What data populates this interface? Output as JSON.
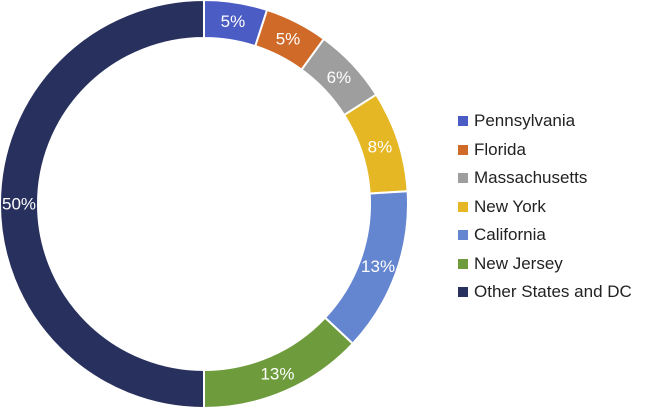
{
  "chart_data": {
    "type": "pie",
    "donut": true,
    "title": "",
    "legend_position": "right",
    "series": [
      {
        "name": "Pennsylvania",
        "value": 5,
        "label": "5%",
        "color": "#4b5cc4"
      },
      {
        "name": "Florida",
        "value": 5,
        "label": "5%",
        "color": "#cf6a28"
      },
      {
        "name": "Massachusetts",
        "value": 6,
        "label": "6%",
        "color": "#9e9e9e"
      },
      {
        "name": "New York",
        "value": 8,
        "label": "8%",
        "color": "#e5b724"
      },
      {
        "name": "California",
        "value": 13,
        "label": "13%",
        "color": "#6485cf"
      },
      {
        "name": "New Jersey",
        "value": 13,
        "label": "13%",
        "color": "#6e9c3d"
      },
      {
        "name": "Other States and DC",
        "value": 50,
        "label": "50%",
        "color": "#28305e"
      }
    ]
  }
}
